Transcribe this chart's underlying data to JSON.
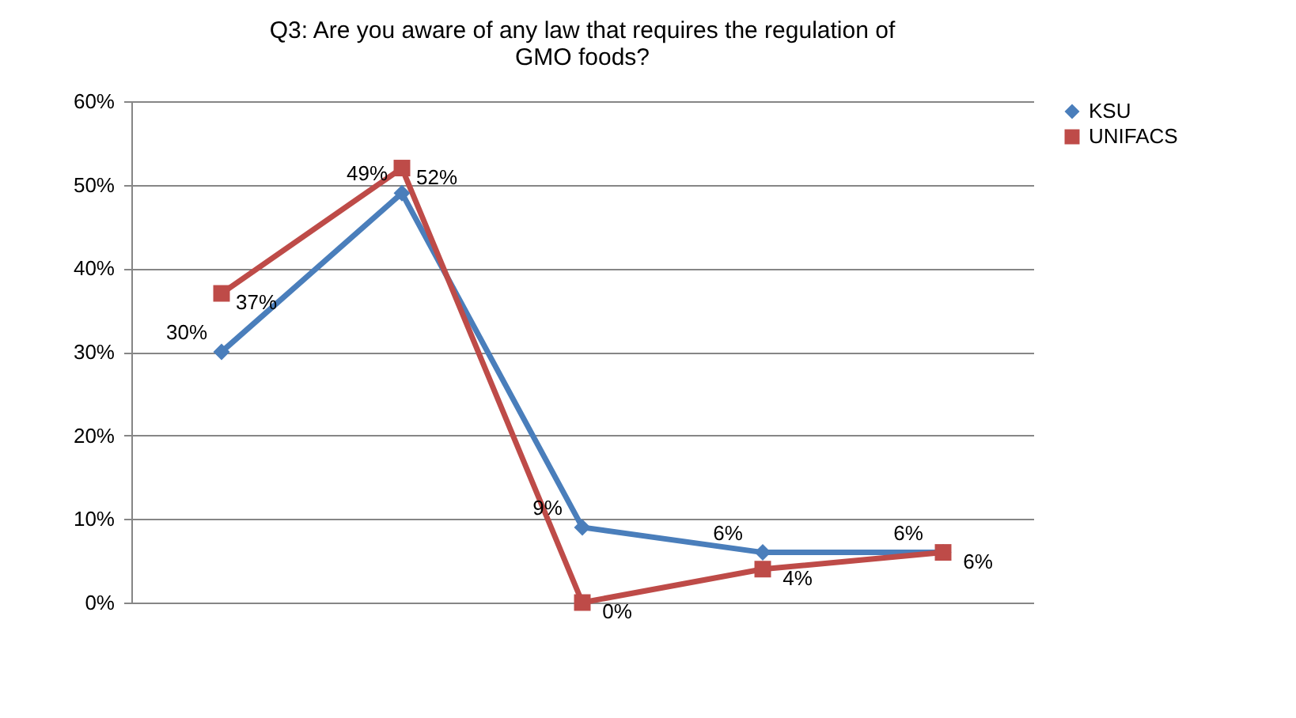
{
  "chart_data": {
    "type": "line",
    "title": "Q3: Are you aware of any law that requires the regulation of GMO foods?",
    "categories": [
      null,
      null,
      null,
      null,
      null
    ],
    "series": [
      {
        "name": "KSU",
        "color": "#4a7ebb",
        "marker": "diamond",
        "values": [
          30,
          49,
          9,
          6,
          6
        ],
        "value_labels": [
          "30%",
          "49%",
          "9%",
          "6%",
          "6%"
        ]
      },
      {
        "name": "UNIFACS",
        "color": "#be4b48",
        "marker": "square",
        "values": [
          37,
          52,
          0,
          4,
          6
        ],
        "value_labels": [
          "37%",
          "52%",
          "0%",
          "4%",
          "6%"
        ]
      }
    ],
    "ylim": [
      0,
      60
    ],
    "yticks": [
      {
        "value": 0,
        "label": "0%"
      },
      {
        "value": 10,
        "label": "10%"
      },
      {
        "value": 20,
        "label": "20%"
      },
      {
        "value": 30,
        "label": "30%"
      },
      {
        "value": 40,
        "label": "40%"
      },
      {
        "value": 50,
        "label": "50%"
      },
      {
        "value": 60,
        "label": "60%"
      }
    ],
    "grid": "y",
    "legend": "right",
    "tick_labels": "y",
    "line_style": "solid"
  }
}
